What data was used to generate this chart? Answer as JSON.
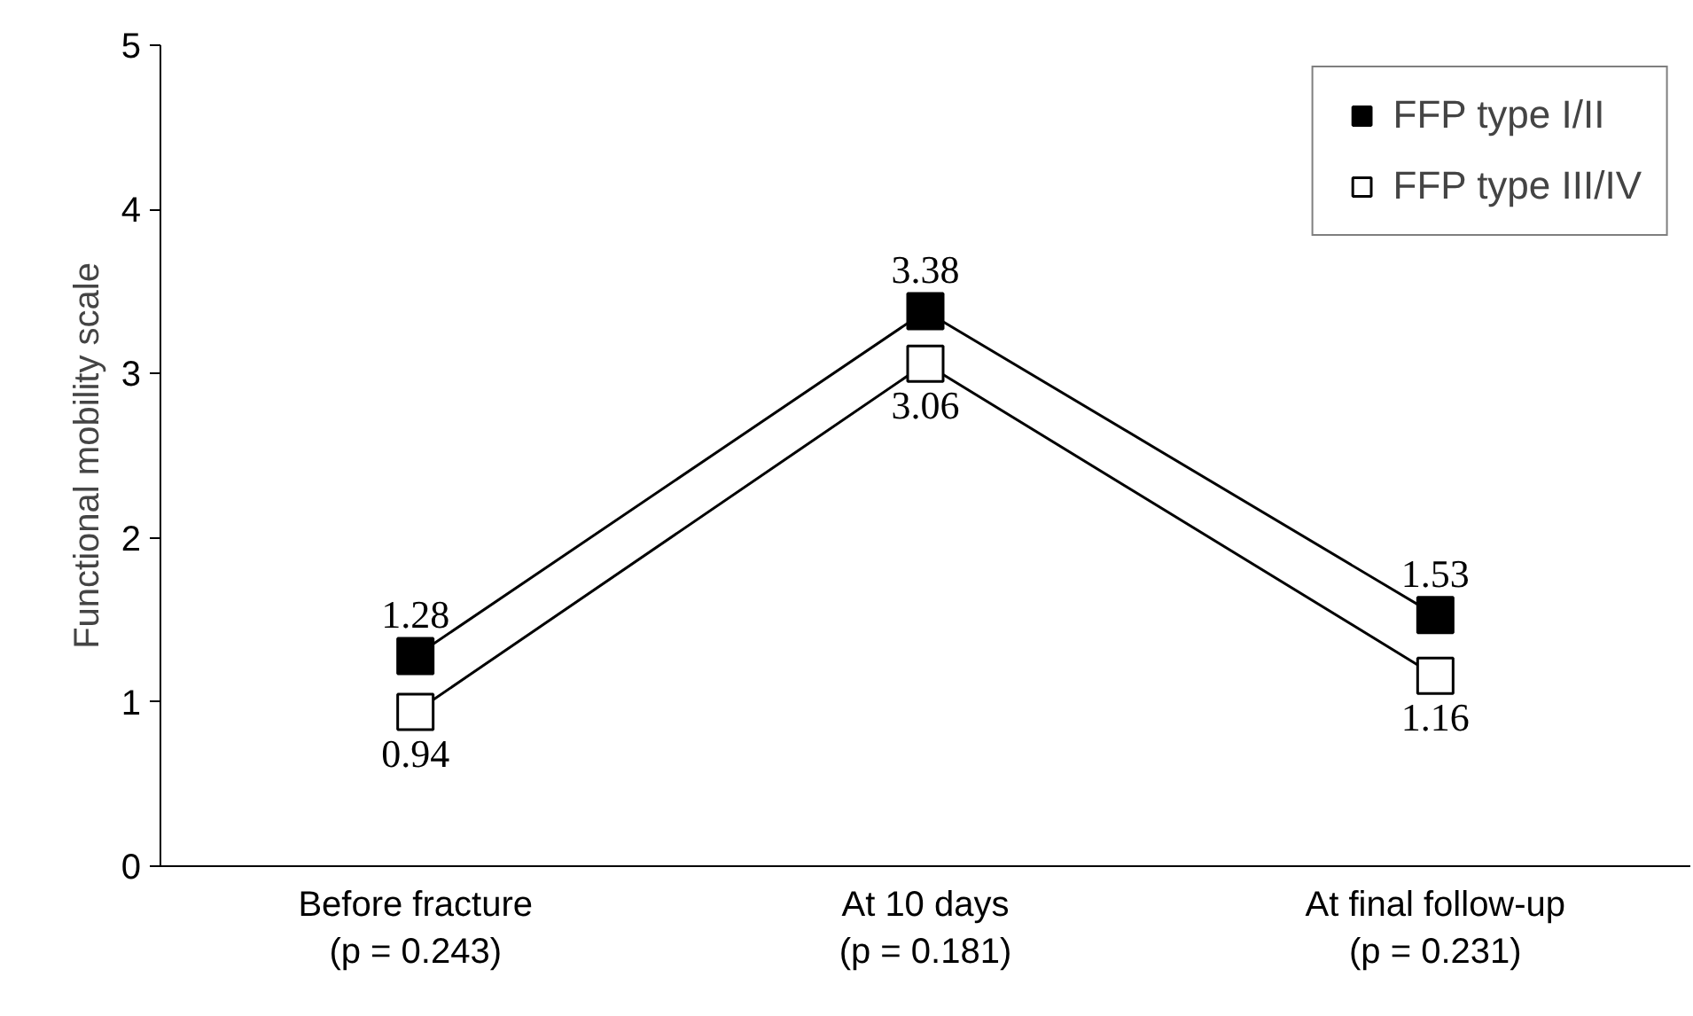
{
  "chart_data": {
    "type": "line",
    "ylabel": "Functional mobility scale",
    "categories": [
      "Before fracture\n(p = 0.243)",
      "At 10 days\n(p = 0.181)",
      "At final follow-up\n(p = 0.231)"
    ],
    "series": [
      {
        "name": "FFP type I/II",
        "color": "#000000",
        "values": [
          1.28,
          3.38,
          1.53
        ]
      },
      {
        "name": "FFP type III/IV",
        "color": "#ffffff",
        "values": [
          0.94,
          3.06,
          1.16
        ]
      }
    ],
    "ylim": [
      0,
      5
    ],
    "yticks": [
      0,
      1,
      2,
      3,
      4,
      5
    ],
    "grid": false,
    "legend": "top right",
    "marker": "square",
    "line_style": "solid",
    "data_labels": true
  }
}
